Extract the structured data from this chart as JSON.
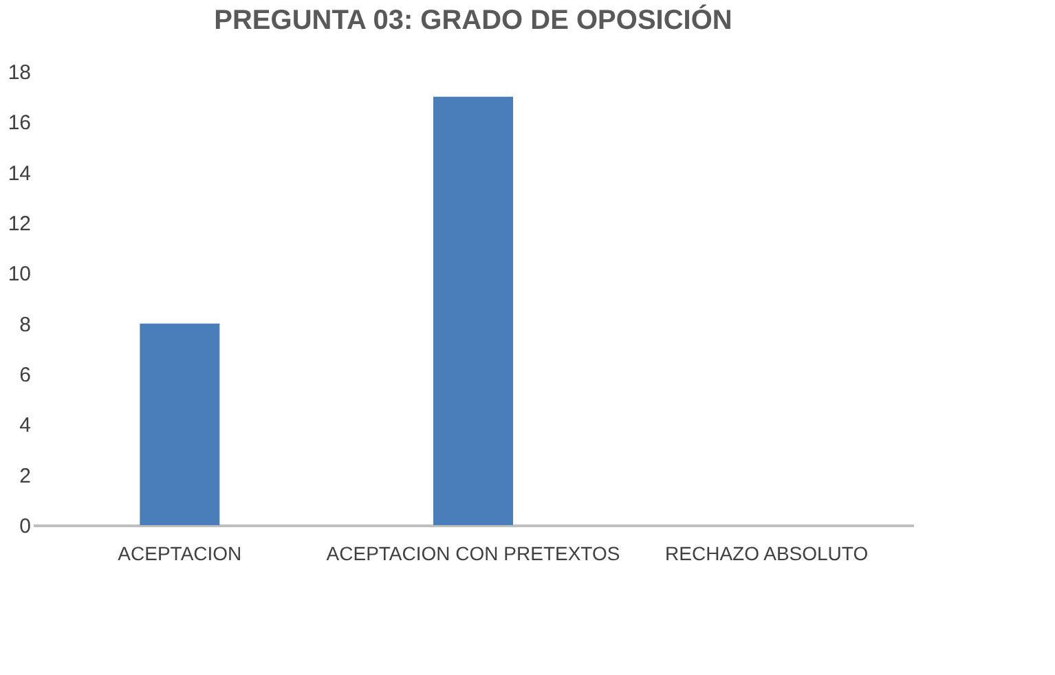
{
  "chart_data": {
    "type": "bar",
    "title": "PREGUNTA 03: GRADO DE OPOSICIÓN",
    "categories": [
      "ACEPTACION",
      "ACEPTACION CON PRETEXTOS",
      "RECHAZO ABSOLUTO"
    ],
    "values": [
      8,
      17,
      0
    ],
    "color": "#4a7ebb",
    "ylim": [
      0,
      18
    ],
    "yticks": [
      0,
      2,
      4,
      6,
      8,
      10,
      12,
      14,
      16,
      18
    ],
    "grid": false
  }
}
